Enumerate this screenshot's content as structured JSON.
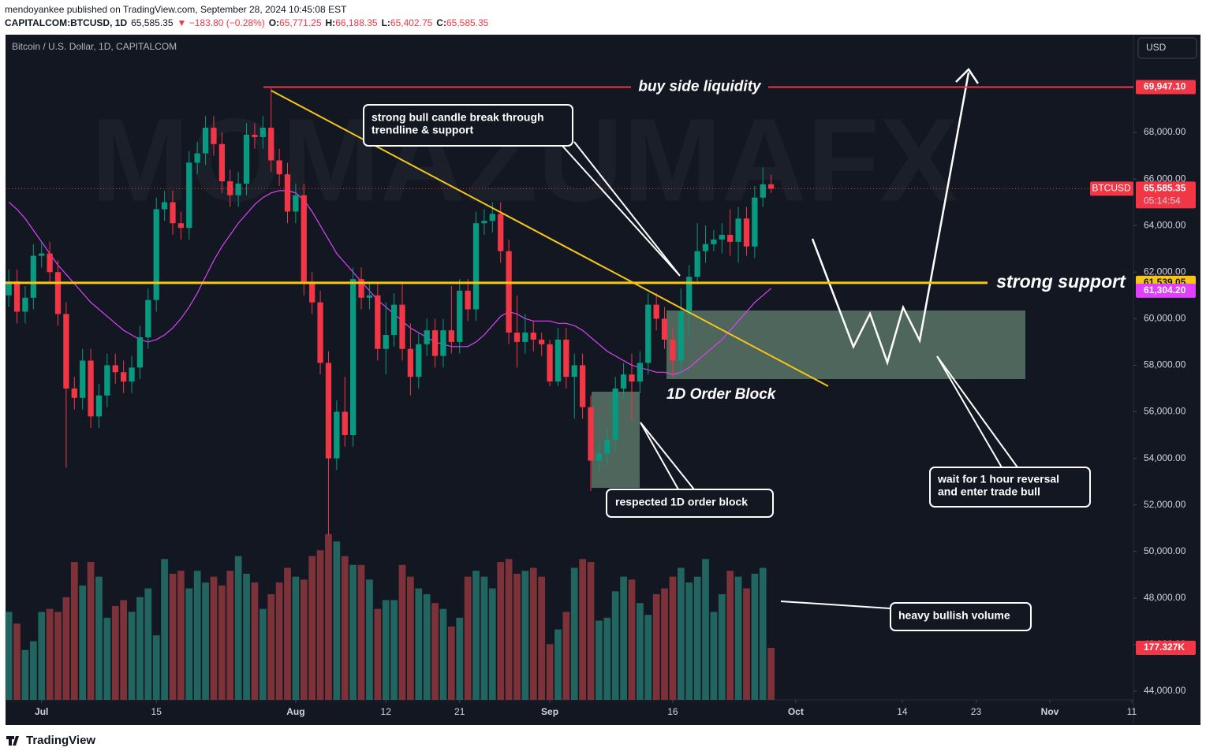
{
  "header": {
    "author_line": "mendoyankee published on TradingView.com, September 28, 2024 10:45:08 EST",
    "symbol": "CAPITALCOM:BTCUSD, 1D",
    "price": "65,585.35",
    "change": "▼ −183.80 (−0.28%)",
    "ohlc": [
      {
        "key": "O:",
        "value": "65,771.25"
      },
      {
        "key": "H:",
        "value": "66,188.35"
      },
      {
        "key": "L:",
        "value": "65,402.75"
      },
      {
        "key": "C:",
        "value": "65,585.35"
      }
    ]
  },
  "footer": {
    "brand": "TradingView"
  },
  "chart_data": {
    "type": "candlestick",
    "title": "Bitcoin / U.S. Dollar, 1D, CAPITALCOM",
    "currency": "USD",
    "watermark": "MOMAZUMAFX",
    "up_color": "#089981",
    "down_color": "#f23645",
    "xlim": [
      -4.4,
      133.2
    ],
    "xticks": [
      {
        "value": 0,
        "label": "Jul"
      },
      {
        "value": 14,
        "label": "15"
      },
      {
        "value": 31,
        "label": "Aug"
      },
      {
        "value": 42,
        "label": "12"
      },
      {
        "value": 51,
        "label": "21"
      },
      {
        "value": 62,
        "label": "Sep"
      },
      {
        "value": 77,
        "label": "16"
      },
      {
        "value": 92,
        "label": "Oct"
      },
      {
        "value": 105,
        "label": "14"
      },
      {
        "value": 114,
        "label": "23"
      },
      {
        "value": 123,
        "label": "Nov"
      },
      {
        "value": 133,
        "label": "11"
      }
    ],
    "ylim": [
      43628,
      72198
    ],
    "yticks": [
      {
        "value": 44000,
        "label": "44,000.00"
      },
      {
        "value": 46000,
        "label": "46,000.00"
      },
      {
        "value": 48000,
        "label": "48,000.00"
      },
      {
        "value": 50000,
        "label": "50,000.00"
      },
      {
        "value": 52000,
        "label": "52,000.00"
      },
      {
        "value": 54000,
        "label": "54,000.00"
      },
      {
        "value": 56000,
        "label": "56,000.00"
      },
      {
        "value": 58000,
        "label": "58,000.00"
      },
      {
        "value": 60000,
        "label": "60,000.00"
      },
      {
        "value": 62000,
        "label": "62,000.00"
      },
      {
        "value": 64000,
        "label": "64,000.00"
      },
      {
        "value": 66000,
        "label": "66,000.00"
      },
      {
        "value": 68000,
        "label": "68,000.00"
      }
    ],
    "grid": false,
    "x": [
      -4,
      -3,
      -2,
      -1,
      0,
      1,
      2,
      3,
      4,
      5,
      6,
      7,
      8,
      9,
      10,
      11,
      12,
      13,
      14,
      15,
      16,
      17,
      18,
      19,
      20,
      21,
      22,
      23,
      24,
      25,
      26,
      27,
      28,
      29,
      30,
      31,
      32,
      33,
      34,
      35,
      36,
      37,
      38,
      39,
      40,
      41,
      42,
      43,
      44,
      45,
      46,
      47,
      48,
      49,
      50,
      51,
      52,
      53,
      54,
      55,
      56,
      57,
      58,
      59,
      60,
      61,
      62,
      63,
      64,
      65,
      66,
      67,
      68,
      69,
      70,
      71,
      72,
      73,
      74,
      75,
      76,
      77,
      78,
      79,
      80,
      81,
      82,
      83,
      84,
      85,
      86,
      87,
      88,
      89
    ],
    "open": [
      61000,
      61600,
      60300,
      60900,
      62700,
      62800,
      62000,
      60200,
      57000,
      56600,
      58200,
      55800,
      56700,
      58000,
      57700,
      57300,
      57900,
      59200,
      60800,
      64700,
      65000,
      64100,
      63900,
      66700,
      67100,
      68200,
      67500,
      65900,
      65300,
      65800,
      67900,
      67800,
      68200,
      66800,
      66200,
      64600,
      65300,
      61500,
      60700,
      58100,
      54000,
      56000,
      55000,
      61700,
      60900,
      61000,
      58700,
      59300,
      60600,
      58700,
      57500,
      58900,
      59500,
      58400,
      59500,
      59000,
      61200,
      60400,
      64100,
      64200,
      64500,
      62900,
      59400,
      59000,
      59400,
      59100,
      58900,
      57300,
      59100,
      57500,
      58000,
      56200,
      53900,
      54200,
      54800,
      57000,
      57600,
      57300,
      58100,
      60600,
      60000,
      59100,
      58200,
      60300,
      61800,
      62900,
      63200,
      63400,
      63600,
      63300,
      64300,
      63100,
      65200,
      65771.25
    ],
    "high": [
      62100,
      62100,
      61400,
      63200,
      63300,
      63300,
      62500,
      60700,
      57500,
      58700,
      58700,
      57200,
      58500,
      58500,
      58200,
      58400,
      59700,
      61300,
      65200,
      65500,
      65500,
      64600,
      67200,
      67600,
      68700,
      68700,
      68000,
      66400,
      66300,
      68400,
      68400,
      68700,
      69900,
      67300,
      66700,
      65800,
      65800,
      62000,
      61200,
      58600,
      56500,
      57500,
      62200,
      62200,
      61500,
      61500,
      60700,
      61100,
      61600,
      59800,
      59400,
      60000,
      60000,
      60000,
      61400,
      61700,
      61700,
      64600,
      64700,
      65000,
      65000,
      63400,
      61000,
      60200,
      59900,
      59400,
      59100,
      59600,
      59600,
      58500,
      58500,
      56700,
      54700,
      55300,
      57500,
      58100,
      58500,
      58600,
      61100,
      61100,
      60500,
      59600,
      61300,
      62300,
      64100,
      64000,
      63800,
      64100,
      64700,
      64800,
      64800,
      65700,
      66500,
      66188.35
    ],
    "low": [
      60500,
      59800,
      59800,
      60400,
      62200,
      61500,
      59700,
      53600,
      56100,
      56100,
      55300,
      55300,
      56200,
      57200,
      56800,
      56800,
      57400,
      58700,
      60300,
      64200,
      63600,
      63400,
      63400,
      66200,
      66600,
      67000,
      65400,
      64800,
      64800,
      65300,
      67300,
      67300,
      66300,
      65700,
      64100,
      64100,
      61000,
      60200,
      57600,
      50700,
      53500,
      54500,
      54500,
      60400,
      60400,
      58200,
      57600,
      58800,
      58200,
      56700,
      57000,
      58400,
      57900,
      57900,
      58500,
      58500,
      59900,
      59900,
      63600,
      63700,
      62400,
      58900,
      57900,
      58500,
      58600,
      58400,
      57100,
      57100,
      57000,
      55700,
      55700,
      52600,
      53400,
      53700,
      54300,
      56500,
      55600,
      56800,
      57600,
      59500,
      58700,
      57500,
      57600,
      59200,
      61600,
      62400,
      62900,
      62800,
      62700,
      62400,
      62700,
      62600,
      64800,
      65402.75
    ],
    "close": [
      61600,
      60300,
      60900,
      62700,
      62800,
      62000,
      60200,
      57000,
      56600,
      58200,
      55800,
      56700,
      58000,
      57700,
      57300,
      57900,
      59200,
      60800,
      64700,
      65000,
      64100,
      63900,
      66700,
      67100,
      68200,
      67500,
      65900,
      65300,
      65800,
      67900,
      67800,
      68200,
      66800,
      66200,
      64600,
      65300,
      61500,
      60700,
      58100,
      54000,
      56000,
      55000,
      61700,
      60900,
      61000,
      58700,
      59300,
      60600,
      58700,
      57500,
      58900,
      59500,
      58400,
      59500,
      59000,
      61200,
      60400,
      64100,
      64200,
      64500,
      62900,
      59400,
      59000,
      59400,
      59100,
      58900,
      57300,
      59100,
      57500,
      58000,
      56200,
      53900,
      54200,
      54800,
      57000,
      57600,
      57300,
      58100,
      60600,
      60000,
      59100,
      58200,
      60300,
      61800,
      62900,
      63200,
      63400,
      63600,
      63300,
      64300,
      63100,
      65200,
      65771.25,
      65585.35
    ],
    "volume": {
      "lim": [
        0,
        2267600
      ],
      "up_color": "#22645f",
      "down_color": "#7c3238",
      "values": [
        300000,
        260000,
        170000,
        200000,
        300000,
        310000,
        300000,
        350000,
        470000,
        390000,
        470000,
        420000,
        280000,
        320000,
        340000,
        300000,
        350000,
        380000,
        220000,
        480000,
        430000,
        440000,
        380000,
        440000,
        400000,
        420000,
        390000,
        440000,
        490000,
        430000,
        400000,
        310000,
        360000,
        400000,
        450000,
        420000,
        410000,
        490000,
        510000,
        565000,
        540000,
        490000,
        460000,
        460000,
        410000,
        310000,
        340000,
        340000,
        460000,
        420000,
        380000,
        360000,
        330000,
        310000,
        250000,
        280000,
        420000,
        440000,
        420000,
        380000,
        470000,
        480000,
        430000,
        440000,
        450000,
        420000,
        190000,
        240000,
        300000,
        450000,
        480000,
        470000,
        270000,
        280000,
        370000,
        420000,
        410000,
        330000,
        290000,
        360000,
        380000,
        420000,
        450000,
        400000,
        420000,
        480000,
        300000,
        360000,
        440000,
        420000,
        380000,
        430000,
        450000,
        177327
      ],
      "last": {
        "value": 177327,
        "label": "177.327K",
        "color": "#f23645"
      }
    },
    "ma": {
      "color": "#e040fb",
      "values": [
        65000,
        64700,
        64300,
        63800,
        63300,
        62800,
        62300,
        61900,
        61500,
        61100,
        60700,
        60400,
        60100,
        59800,
        59500,
        59300,
        59100,
        59000,
        59100,
        59300,
        59600,
        60000,
        60500,
        61100,
        61800,
        62500,
        63100,
        63600,
        64100,
        64500,
        64900,
        65200,
        65400,
        65500,
        65500,
        65400,
        65100,
        64600,
        64000,
        63400,
        62800,
        62400,
        62000,
        61600,
        61200,
        60800,
        60500,
        60200,
        59900,
        59600,
        59400,
        59200,
        59000,
        58900,
        58800,
        58800,
        58800,
        59000,
        59300,
        59700,
        60100,
        60300,
        60200,
        60000,
        59900,
        59900,
        59900,
        59800,
        59800,
        59700,
        59500,
        59200,
        58900,
        58600,
        58400,
        58200,
        58000,
        57900,
        57800,
        57700,
        57700,
        57600,
        57700,
        57900,
        58200,
        58500,
        58800,
        59100,
        59500,
        59900,
        60300,
        60700,
        61000,
        61304.2
      ]
    },
    "levels": [
      {
        "value": 69947.1,
        "label": "69,947.10",
        "color": "#f23645",
        "text": "buy side liquidity"
      },
      {
        "value": 61539.05,
        "label": "61,539.05",
        "color": "#f5c518",
        "text": "strong support"
      }
    ],
    "last_price": {
      "value": 65585.35,
      "label": "65,585.35",
      "symbol": "BTCUSD",
      "countdown": "05:14:54",
      "color": "#f23645"
    },
    "ma_tag": {
      "value": 61304.2,
      "label": "61,304.20"
    },
    "annotations": {
      "bull_candle": [
        "strong bull candle break through",
        "trendline & support"
      ],
      "order_block": "1D Order Block",
      "respected": "respected 1D order block",
      "wait": [
        "wait for 1 hour reversal",
        "and enter trade bull"
      ],
      "volume": "heavy bullish volume"
    }
  }
}
